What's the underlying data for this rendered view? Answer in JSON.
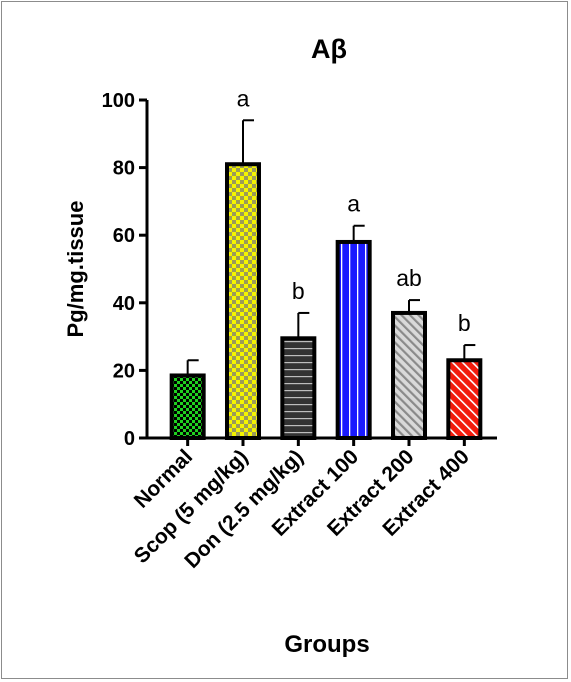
{
  "chart_data": {
    "type": "bar",
    "title": "Aβ",
    "xlabel": "Groups",
    "ylabel": "Pg/mg.tissue",
    "ylim": [
      0,
      100
    ],
    "yticks": [
      0,
      20,
      40,
      60,
      80,
      100
    ],
    "categories": [
      "Normal",
      "Scop (5 mg/kg)",
      "Don (2.5 mg/kg)",
      "Extract 100",
      "Extract 200",
      "Extract 400"
    ],
    "values": [
      18.5,
      81,
      29.5,
      58,
      37,
      23
    ],
    "errors": [
      4.5,
      13,
      7.5,
      4.8,
      3.8,
      4.5
    ],
    "significance": [
      "",
      "a",
      "b",
      "a",
      "ab",
      "b"
    ],
    "bar_patterns": [
      "green-checker",
      "yellow-checker",
      "dark-horizontal-stripes",
      "blue-vertical-stripes",
      "gray-diagonal-stripes",
      "red-diagonal-stripes"
    ],
    "colors": {
      "green": "#1fd11f",
      "yellow": "#f4f400",
      "dark": "#333333",
      "blue": "#1a1aff",
      "gray": "#9a9a9a",
      "red": "#f21b0c"
    },
    "grid": false,
    "legend": "none"
  }
}
